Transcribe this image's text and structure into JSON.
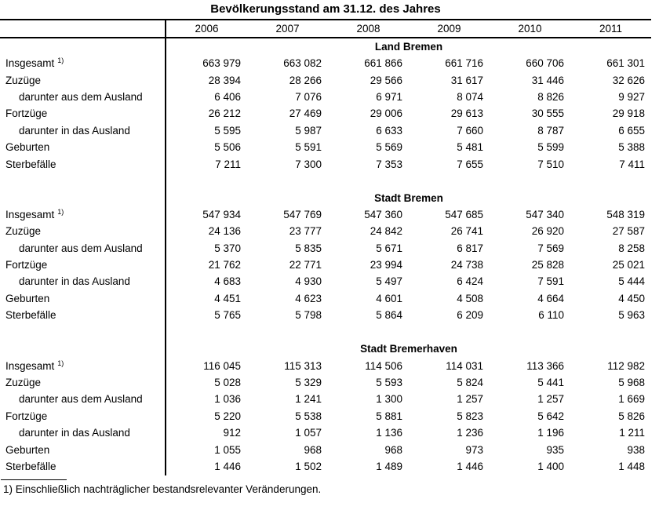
{
  "title": "Bevölkerungsstand am 31.12. des Jahres",
  "footnote": "1) Einschließlich nachträglicher bestandsrelevanter Veränderungen.",
  "table": {
    "years": [
      "2006",
      "2007",
      "2008",
      "2009",
      "2010",
      "2011"
    ],
    "sections": [
      {
        "name": "Land Bremen",
        "rows": [
          {
            "label": "Insgesamt",
            "footnote_ref": "1)",
            "indent": false,
            "values": [
              "663 979",
              "663 082",
              "661 866",
              "661 716",
              "660 706",
              "661 301"
            ]
          },
          {
            "label": "Zuzüge",
            "indent": false,
            "values": [
              "28 394",
              "28 266",
              "29 566",
              "31 617",
              "31 446",
              "32 626"
            ]
          },
          {
            "label": "darunter aus dem Ausland",
            "indent": true,
            "values": [
              "6 406",
              "7 076",
              "6 971",
              "8 074",
              "8 826",
              "9 927"
            ]
          },
          {
            "label": "Fortzüge",
            "indent": false,
            "values": [
              "26 212",
              "27 469",
              "29 006",
              "29 613",
              "30 555",
              "29 918"
            ]
          },
          {
            "label": "darunter in das Ausland",
            "indent": true,
            "values": [
              "5 595",
              "5 987",
              "6 633",
              "7 660",
              "8 787",
              "6 655"
            ]
          },
          {
            "label": "Geburten",
            "indent": false,
            "values": [
              "5 506",
              "5 591",
              "5 569",
              "5 481",
              "5 599",
              "5 388"
            ]
          },
          {
            "label": "Sterbefälle",
            "indent": false,
            "values": [
              "7 211",
              "7 300",
              "7 353",
              "7 655",
              "7 510",
              "7 411"
            ]
          }
        ]
      },
      {
        "name": "Stadt Bremen",
        "rows": [
          {
            "label": "Insgesamt",
            "footnote_ref": "1)",
            "indent": false,
            "values": [
              "547 934",
              "547 769",
              "547 360",
              "547 685",
              "547 340",
              "548 319"
            ]
          },
          {
            "label": "Zuzüge",
            "indent": false,
            "values": [
              "24 136",
              "23 777",
              "24 842",
              "26 741",
              "26 920",
              "27 587"
            ]
          },
          {
            "label": "darunter aus dem Ausland",
            "indent": true,
            "values": [
              "5 370",
              "5 835",
              "5 671",
              "6 817",
              "7 569",
              "8 258"
            ]
          },
          {
            "label": "Fortzüge",
            "indent": false,
            "values": [
              "21 762",
              "22 771",
              "23 994",
              "24 738",
              "25 828",
              "25 021"
            ]
          },
          {
            "label": "darunter in das Ausland",
            "indent": true,
            "values": [
              "4 683",
              "4 930",
              "5 497",
              "6 424",
              "7 591",
              "5 444"
            ]
          },
          {
            "label": "Geburten",
            "indent": false,
            "values": [
              "4 451",
              "4 623",
              "4 601",
              "4 508",
              "4 664",
              "4 450"
            ]
          },
          {
            "label": "Sterbefälle",
            "indent": false,
            "values": [
              "5 765",
              "5 798",
              "5 864",
              "6 209",
              "6 110",
              "5 963"
            ]
          }
        ]
      },
      {
        "name": "Stadt Bremerhaven",
        "rows": [
          {
            "label": "Insgesamt",
            "footnote_ref": "1)",
            "indent": false,
            "values": [
              "116 045",
              "115 313",
              "114 506",
              "114 031",
              "113 366",
              "112 982"
            ]
          },
          {
            "label": "Zuzüge",
            "indent": false,
            "values": [
              "5 028",
              "5 329",
              "5 593",
              "5 824",
              "5 441",
              "5 968"
            ]
          },
          {
            "label": "darunter aus dem Ausland",
            "indent": true,
            "values": [
              "1 036",
              "1 241",
              "1 300",
              "1 257",
              "1 257",
              "1 669"
            ]
          },
          {
            "label": "Fortzüge",
            "indent": false,
            "values": [
              "5 220",
              "5 538",
              "5 881",
              "5 823",
              "5 642",
              "5 826"
            ]
          },
          {
            "label": "darunter in das Ausland",
            "indent": true,
            "values": [
              "912",
              "1 057",
              "1 136",
              "1 236",
              "1 196",
              "1 211"
            ]
          },
          {
            "label": "Geburten",
            "indent": false,
            "values": [
              "1 055",
              "968",
              "968",
              "973",
              "935",
              "938"
            ]
          },
          {
            "label": "Sterbefälle",
            "indent": false,
            "values": [
              "1 446",
              "1 502",
              "1 489",
              "1 446",
              "1 400",
              "1 448"
            ]
          }
        ]
      }
    ]
  }
}
